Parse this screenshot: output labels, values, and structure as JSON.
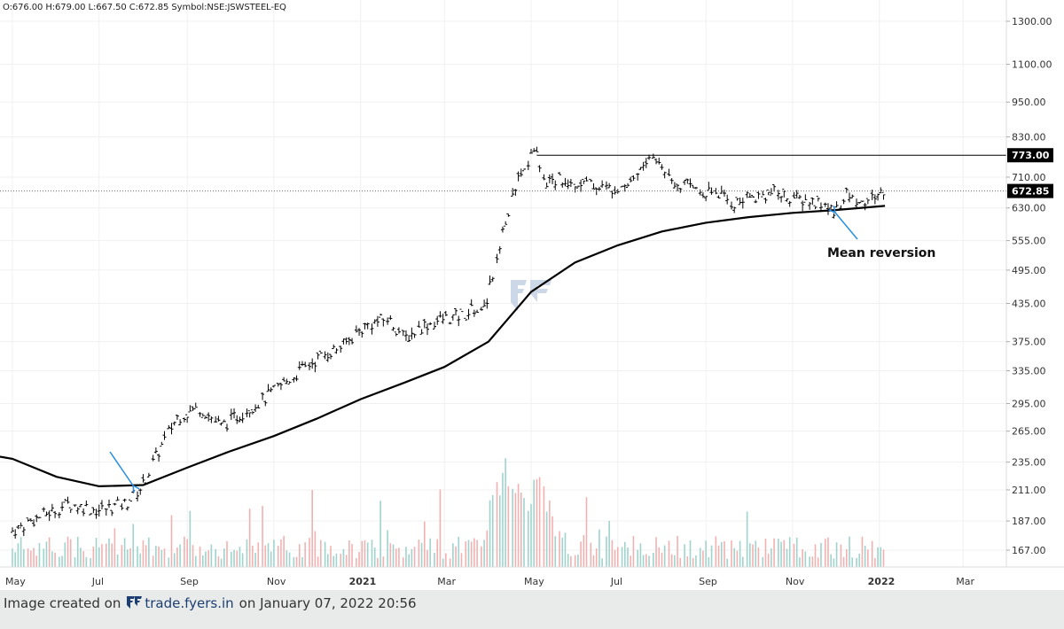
{
  "ohlc": {
    "open": "O:676.00",
    "high": "H:679.00",
    "low": "L:667.50",
    "close": "C:672.85",
    "symbol": "Symbol:NSE:JSWSTEEL-EQ"
  },
  "footer": {
    "prefix": "Image created on",
    "brand": "trade.fyers.in",
    "suffix": "on January 07, 2022 20:56"
  },
  "colors": {
    "price_bars": "#000000",
    "moving_average": "#000000",
    "volume_up": "#9fd3cc",
    "volume_down": "#f2b1b1",
    "arrow": "#2a8fe0",
    "watermark": "#c7d3e6"
  },
  "chart_data": {
    "type": "line",
    "scale": "log",
    "grid": true,
    "y_ticks": [
      "1300.00",
      "1100.00",
      "950.00",
      "830.00",
      "710.00",
      "630.00",
      "555.00",
      "495.00",
      "435.00",
      "375.00",
      "335.00",
      "295.00",
      "265.00",
      "235.00",
      "211.00",
      "187.00",
      "167.00"
    ],
    "x_ticks": [
      "May",
      "Jul",
      "Sep",
      "Nov",
      "2021",
      "Mar",
      "May",
      "Jul",
      "Sep",
      "Nov",
      "2022",
      "Mar"
    ],
    "x_tick_dates": [
      "2020-05",
      "2020-07",
      "2020-09",
      "2020-11",
      "2021-01",
      "2021-03",
      "2021-05",
      "2021-07",
      "2021-09",
      "2021-11",
      "2022-01",
      "2022-03"
    ],
    "price_labels": [
      {
        "text": "773.00",
        "value": 773,
        "kind": "resistance"
      },
      {
        "text": "672.85",
        "value": 672.85,
        "kind": "last"
      }
    ],
    "annotation": {
      "text": "Mean reversion"
    },
    "price_series": {
      "x": [
        "2020-05-01",
        "2020-05-20",
        "2020-06-10",
        "2020-07-01",
        "2020-07-20",
        "2020-08-01",
        "2020-08-12",
        "2020-08-25",
        "2020-09-10",
        "2020-09-25",
        "2020-10-10",
        "2020-10-25",
        "2020-11-05",
        "2020-11-20",
        "2020-12-05",
        "2020-12-20",
        "2021-01-05",
        "2021-01-20",
        "2021-02-01",
        "2021-02-15",
        "2021-03-01",
        "2021-03-15",
        "2021-03-31",
        "2021-04-10",
        "2021-04-20",
        "2021-04-30",
        "2021-05-05",
        "2021-05-10",
        "2021-05-25",
        "2021-06-10",
        "2021-06-25",
        "2021-07-10",
        "2021-07-25",
        "2021-08-10",
        "2021-08-25",
        "2021-09-10",
        "2021-09-20",
        "2021-10-05",
        "2021-10-20",
        "2021-11-05",
        "2021-11-20",
        "2021-12-01",
        "2021-12-10",
        "2021-12-20",
        "2022-01-05"
      ],
      "close": [
        180,
        190,
        200,
        195,
        200,
        215,
        245,
        280,
        290,
        270,
        285,
        300,
        315,
        335,
        355,
        370,
        400,
        410,
        380,
        400,
        410,
        415,
        440,
        560,
        690,
        760,
        775,
        700,
        705,
        690,
        680,
        700,
        770,
        700,
        680,
        665,
        640,
        660,
        670,
        650,
        640,
        625,
        665,
        640,
        672.85
      ]
    },
    "moving_average": {
      "x": [
        "2020-05-01",
        "2020-06-01",
        "2020-07-01",
        "2020-08-01",
        "2020-09-01",
        "2020-10-01",
        "2020-11-01",
        "2020-12-01",
        "2021-01-01",
        "2021-02-01",
        "2021-03-01",
        "2021-04-01",
        "2021-05-01",
        "2021-06-01",
        "2021-07-01",
        "2021-08-01",
        "2021-09-01",
        "2021-10-01",
        "2021-11-01",
        "2021-12-01",
        "2022-01-05"
      ],
      "value": [
        238,
        222,
        214,
        215,
        230,
        245,
        260,
        278,
        300,
        320,
        340,
        375,
        455,
        510,
        545,
        575,
        595,
        608,
        618,
        625,
        635
      ]
    },
    "volume": {
      "unit": "relative",
      "baseline_level": 0.12,
      "peaks": [
        {
          "x": "2021-04-15",
          "level": 1.0
        },
        {
          "x": "2021-05-05",
          "level": 0.8
        }
      ]
    }
  }
}
